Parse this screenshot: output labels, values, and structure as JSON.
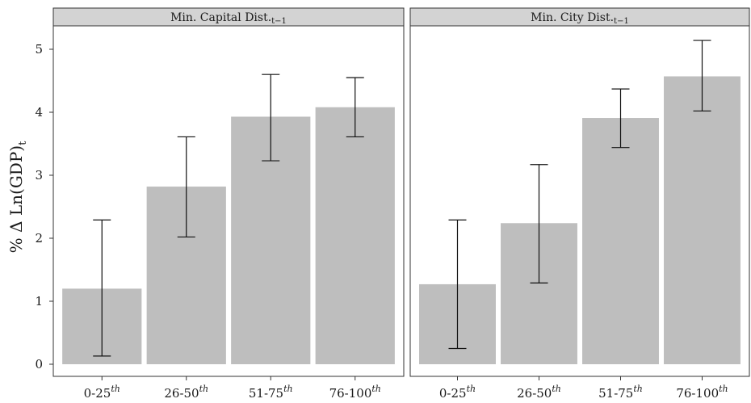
{
  "chart_data": {
    "type": "bar",
    "ylabel_main": "% Δ Ln(GDP)",
    "ylabel_sub": "t",
    "ylim": [
      -0.1,
      5.4
    ],
    "yticks": [
      "0",
      "1",
      "2",
      "3",
      "4",
      "5"
    ],
    "ytick_values": [
      0,
      1,
      2,
      3,
      4,
      5
    ],
    "grid": false,
    "bar_color": "#bebebe",
    "strip_color": "#d3d3d3",
    "categories": [
      {
        "main": "0-25",
        "sup": "th"
      },
      {
        "main": "26-50",
        "sup": "th"
      },
      {
        "main": "51-75",
        "sup": "th"
      },
      {
        "main": "76-100",
        "sup": "th"
      }
    ],
    "panels": [
      {
        "title_main": "Min. Capital Dist.",
        "title_sub": "t−1",
        "values": [
          1.2,
          2.82,
          3.93,
          4.08
        ],
        "err_low": [
          0.13,
          2.02,
          3.23,
          3.61
        ],
        "err_high": [
          2.29,
          3.61,
          4.6,
          4.55
        ]
      },
      {
        "title_main": "Min. City Dist.",
        "title_sub": "t−1",
        "values": [
          1.27,
          2.24,
          3.91,
          4.57
        ],
        "err_low": [
          0.25,
          1.29,
          3.44,
          4.02
        ],
        "err_high": [
          2.29,
          3.17,
          4.37,
          5.14
        ]
      }
    ]
  }
}
